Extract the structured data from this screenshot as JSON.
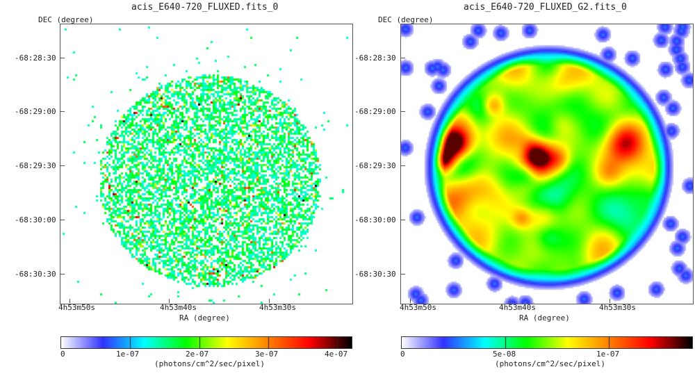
{
  "chart_data": [
    {
      "type": "heatmap",
      "title": "acis_E640-720_FLUXED.fits_0",
      "xlabel": "RA (degree)",
      "ylabel": "DEC (degree)",
      "x_ticks": [
        "4h53m50s",
        "4h53m40s",
        "4h53m30s"
      ],
      "y_ticks": [
        "-68:28:30",
        "-68:29:00",
        "-68:29:30",
        "-68:30:00",
        "-68:30:30"
      ],
      "colorbar": {
        "label": "(photons/cm^2/sec/pixel)",
        "range": [
          0,
          4.2e-07
        ],
        "tick_labels": [
          "0",
          "1e-07",
          "2e-07",
          "3e-07",
          "4e-07"
        ],
        "tick_values": [
          0,
          1e-07,
          2e-07,
          3e-07,
          4e-07
        ]
      },
      "style": "sparse unsmoothed pixels inside a circular remnant"
    },
    {
      "type": "heatmap",
      "title": "acis_E640-720_FLUXED_G2.fits_0",
      "xlabel": "RA (degree)",
      "ylabel": "DEC (degree)",
      "x_ticks": [
        "4h53m50s",
        "4h53m40s",
        "4h53m30s"
      ],
      "y_ticks": [
        "-68:28:30",
        "-68:29:00",
        "-68:29:30",
        "-68:30:00",
        "-68:30:30"
      ],
      "colorbar": {
        "label": "(photons/cm^2/sec/pixel)",
        "range": [
          0,
          1.4e-07
        ],
        "tick_labels": [
          "0",
          "5e-08",
          "1e-07"
        ],
        "tick_values": [
          0,
          5e-08,
          1e-07
        ]
      },
      "style": "gaussian-smoothed image, bright circular remnant"
    }
  ],
  "colors": {
    "background": "#ffffff",
    "axis_frame": "#555555",
    "colormap": [
      "#ffffff",
      "#3232ff",
      "#00ffff",
      "#00ff00",
      "#ffff00",
      "#ff8000",
      "#ff0000",
      "#000000"
    ]
  }
}
